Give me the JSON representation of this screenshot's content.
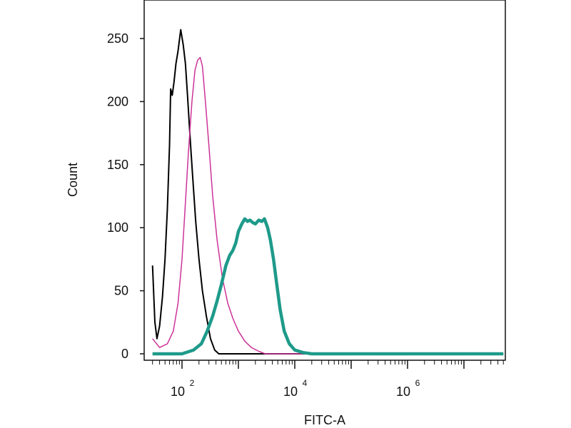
{
  "chart_data": {
    "type": "line",
    "title": "",
    "xlabel": "FITC-A",
    "ylabel": "Count",
    "xscale": "log",
    "xlim": [
      30,
      50000000
    ],
    "ylim": [
      0,
      280
    ],
    "grid": false,
    "legend": "none",
    "y_ticks": [
      0,
      50,
      100,
      150,
      200,
      250
    ],
    "x_ticks": [
      {
        "value": 100,
        "base": "10",
        "exp": "2"
      },
      {
        "value": 10000,
        "base": "10",
        "exp": "4"
      },
      {
        "value": 1000000,
        "base": "10",
        "exp": "6"
      }
    ],
    "series": [
      {
        "color": "#000000",
        "width": 2,
        "points": [
          [
            30,
            70
          ],
          [
            33,
            25
          ],
          [
            36,
            12
          ],
          [
            40,
            22
          ],
          [
            45,
            45
          ],
          [
            50,
            75
          ],
          [
            55,
            115
          ],
          [
            60,
            165
          ],
          [
            63,
            210
          ],
          [
            67,
            205
          ],
          [
            72,
            215
          ],
          [
            78,
            230
          ],
          [
            85,
            240
          ],
          [
            95,
            257
          ],
          [
            105,
            245
          ],
          [
            115,
            230
          ],
          [
            125,
            205
          ],
          [
            140,
            170
          ],
          [
            155,
            140
          ],
          [
            175,
            105
          ],
          [
            200,
            75
          ],
          [
            230,
            50
          ],
          [
            270,
            30
          ],
          [
            320,
            12
          ],
          [
            380,
            3
          ],
          [
            450,
            0
          ],
          [
            50000000,
            0
          ]
        ]
      },
      {
        "color": "#cc3399",
        "width": 1.5,
        "points": [
          [
            30,
            12
          ],
          [
            40,
            5
          ],
          [
            55,
            8
          ],
          [
            70,
            18
          ],
          [
            85,
            40
          ],
          [
            100,
            75
          ],
          [
            115,
            120
          ],
          [
            130,
            160
          ],
          [
            150,
            200
          ],
          [
            170,
            225
          ],
          [
            190,
            233
          ],
          [
            210,
            235
          ],
          [
            230,
            228
          ],
          [
            260,
            200
          ],
          [
            300,
            165
          ],
          [
            350,
            125
          ],
          [
            420,
            90
          ],
          [
            520,
            60
          ],
          [
            650,
            40
          ],
          [
            800,
            28
          ],
          [
            1000,
            18
          ],
          [
            1300,
            10
          ],
          [
            1700,
            5
          ],
          [
            2300,
            2
          ],
          [
            3000,
            0
          ],
          [
            50000000,
            0
          ]
        ]
      },
      {
        "color": "#1e9a8a",
        "width": 4.5,
        "points": [
          [
            30,
            0
          ],
          [
            100,
            0
          ],
          [
            160,
            3
          ],
          [
            220,
            8
          ],
          [
            280,
            18
          ],
          [
            350,
            30
          ],
          [
            420,
            42
          ],
          [
            500,
            55
          ],
          [
            600,
            70
          ],
          [
            700,
            78
          ],
          [
            800,
            82
          ],
          [
            900,
            88
          ],
          [
            1000,
            97
          ],
          [
            1150,
            103
          ],
          [
            1300,
            107
          ],
          [
            1450,
            105
          ],
          [
            1600,
            106
          ],
          [
            1800,
            104
          ],
          [
            2000,
            103
          ],
          [
            2300,
            106
          ],
          [
            2600,
            105
          ],
          [
            2900,
            107
          ],
          [
            3300,
            100
          ],
          [
            3700,
            90
          ],
          [
            4200,
            75
          ],
          [
            4800,
            55
          ],
          [
            5500,
            35
          ],
          [
            6500,
            18
          ],
          [
            8000,
            8
          ],
          [
            10000,
            3
          ],
          [
            14000,
            1
          ],
          [
            20000,
            0
          ],
          [
            50000000,
            0
          ]
        ]
      }
    ]
  }
}
